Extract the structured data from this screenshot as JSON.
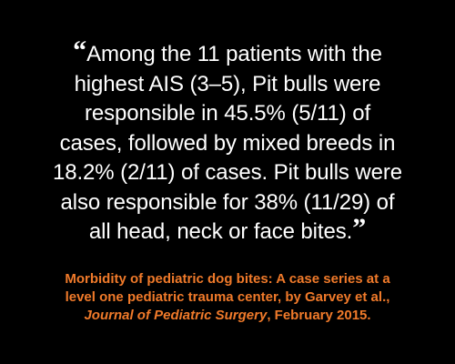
{
  "colors": {
    "background": "#000000",
    "quote_text": "#ffffff",
    "citation_text": "#f07a2a"
  },
  "quote": {
    "open_mark": "“",
    "close_mark": "”",
    "lines": [
      "Among the 11 patients with the",
      "highest AIS (3–5), Pit bulls were",
      "responsible in 45.5% (5/11) of",
      "cases, followed by mixed breeds in",
      "18.2% (2/11) of cases. Pit bulls were",
      "also responsible for 38% (11/29) of",
      "all head, neck or face bites."
    ]
  },
  "citation": {
    "line1": "Morbidity of pediatric dog bites: A case series at a",
    "line2": "level one pediatric trauma center, by Garvey et al.,",
    "journal": "Journal of Pediatric Surgery",
    "date_suffix": ", February 2015."
  }
}
